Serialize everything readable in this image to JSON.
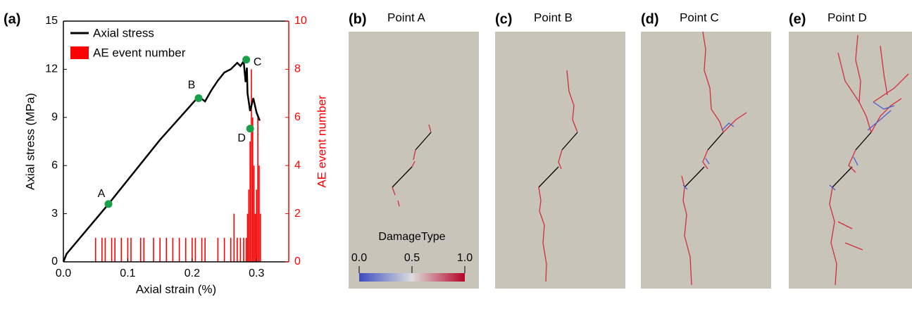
{
  "chart_data": {
    "type": "line-bar",
    "panel_label": "(a)",
    "xlabel": "Axial strain (%)",
    "ylabel": "Axial stress (MPa)",
    "y2label": "AE event number",
    "xlim": [
      0,
      0.35
    ],
    "xticks": [
      {
        "value": 0,
        "label": "0.0"
      },
      0.1,
      0.2,
      0.3
    ],
    "ylim": [
      0,
      15
    ],
    "yticks": [
      0,
      3,
      6,
      9,
      12,
      15
    ],
    "y2lim": [
      0,
      10
    ],
    "y2ticks": [
      0,
      2,
      4,
      6,
      8,
      10
    ],
    "legend": "upper-left",
    "series": [
      {
        "name": "Axial stress",
        "type": "line",
        "color": "#000000",
        "x": [
          0,
          0.005,
          0.07,
          0.15,
          0.21,
          0.22,
          0.23,
          0.24,
          0.25,
          0.26,
          0.27,
          0.275,
          0.28,
          0.283,
          0.285,
          0.286,
          0.29,
          0.295,
          0.3,
          0.305
        ],
        "values": [
          0,
          0.5,
          3.6,
          7.6,
          10.3,
          10.0,
          10.7,
          11.3,
          11.8,
          12.0,
          12.4,
          12.2,
          12.5,
          11.2,
          12.1,
          10.5,
          9.4,
          10.2,
          9.3,
          8.8
        ]
      },
      {
        "name": "AE event number",
        "type": "bar",
        "axis": "y2",
        "color": "#ff0000",
        "x": [
          0.05,
          0.06,
          0.065,
          0.075,
          0.08,
          0.09,
          0.1,
          0.105,
          0.12,
          0.125,
          0.14,
          0.15,
          0.16,
          0.17,
          0.18,
          0.19,
          0.2,
          0.205,
          0.215,
          0.22,
          0.24,
          0.25,
          0.26,
          0.265,
          0.27,
          0.275,
          0.28,
          0.284,
          0.286,
          0.288,
          0.29,
          0.292,
          0.294,
          0.296,
          0.298,
          0.3,
          0.302,
          0.304,
          0.306
        ],
        "values": [
          1,
          1,
          1,
          1,
          1,
          1,
          1,
          1,
          1,
          1,
          1,
          1,
          1,
          1,
          1,
          1,
          1,
          1,
          1,
          1,
          1,
          1,
          1,
          2,
          1,
          1,
          1,
          1,
          2,
          3,
          5,
          8,
          6,
          4,
          2,
          3,
          6,
          4,
          2
        ]
      }
    ],
    "points": [
      {
        "label": "A",
        "x": 0.07,
        "y": 3.6,
        "color": "#1aa04a"
      },
      {
        "label": "B",
        "x": 0.21,
        "y": 10.2,
        "color": "#1aa04a"
      },
      {
        "label": "C",
        "x": 0.284,
        "y": 12.6,
        "color": "#1aa04a"
      },
      {
        "label": "D",
        "x": 0.29,
        "y": 8.3,
        "color": "#1aa04a"
      }
    ]
  },
  "panels": [
    {
      "label": "(b)",
      "title": "Point A"
    },
    {
      "label": "(c)",
      "title": "Point B"
    },
    {
      "label": "(d)",
      "title": "Point C"
    },
    {
      "label": "(e)",
      "title": "Point D"
    }
  ],
  "colorbar": {
    "title": "DamageType",
    "ticks": [
      "0.0",
      "0.5",
      "1.0"
    ]
  }
}
